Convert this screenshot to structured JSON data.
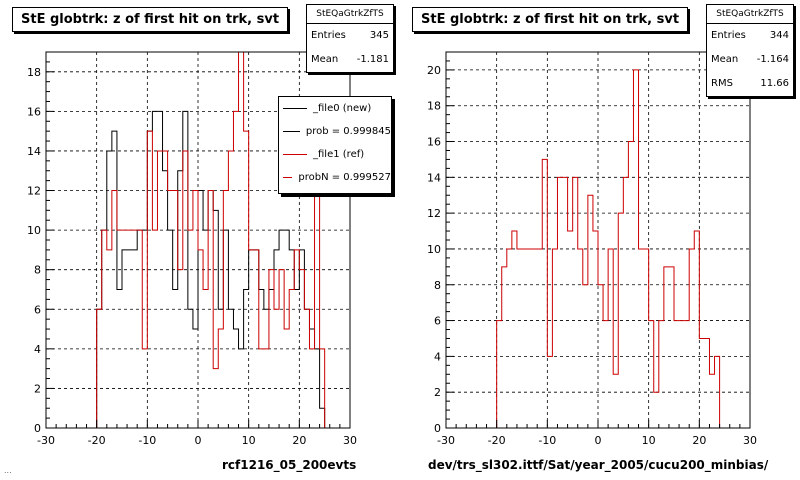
{
  "chart_data": [
    {
      "type": "step",
      "title": "StE globtrk: z of first hit on trk, svt",
      "xlabel": "rcf1216_05_200evts",
      "xlim": [
        -30,
        30
      ],
      "ylim": [
        0,
        19
      ],
      "xticks": [
        -30,
        -20,
        -10,
        0,
        10,
        20,
        30
      ],
      "yticks": [
        0,
        2,
        4,
        6,
        8,
        10,
        12,
        14,
        16,
        18
      ],
      "grid": true,
      "bin_edges_start": -30,
      "bin_width": 1,
      "stats": {
        "header": "StEQaGtrkZfTS",
        "entries_label": "Entries",
        "entries": "345",
        "mean_label": "Mean",
        "mean": "-1.181"
      },
      "legend": {
        "placement": "top-right",
        "entries": [
          {
            "label": "_file0 (new)",
            "color": "#000000"
          },
          {
            "label": "prob = 0.999845",
            "color": "#000000"
          },
          {
            "label": "_file1 (ref)",
            "color": "#cc0000"
          },
          {
            "label": "probN = 0.999527",
            "color": "#cc0000"
          }
        ]
      },
      "series": [
        {
          "name": "_file0 (new)",
          "color": "#000000",
          "values": [
            0,
            0,
            0,
            0,
            0,
            0,
            0,
            0,
            0,
            0,
            6,
            10,
            14,
            15,
            7,
            9,
            9,
            9,
            10,
            10,
            15,
            16,
            16,
            13,
            10,
            7,
            13,
            16,
            6,
            5,
            12,
            10,
            12,
            11,
            6,
            10,
            6,
            5,
            4,
            7,
            9,
            9,
            7,
            6,
            7,
            9,
            10,
            10,
            9,
            7,
            9,
            6,
            5,
            4,
            1,
            0,
            0,
            0,
            0,
            0
          ]
        },
        {
          "name": "_file1 (ref)",
          "color": "#cc0000",
          "values": [
            0,
            0,
            0,
            0,
            0,
            0,
            0,
            0,
            0,
            0,
            6,
            10,
            9,
            12,
            10,
            10,
            10,
            10,
            10,
            4,
            15,
            10,
            14,
            14,
            12,
            12,
            8,
            14,
            10,
            12,
            9,
            7,
            12,
            3,
            5,
            12,
            14,
            16,
            19,
            15,
            9,
            9,
            4,
            4,
            8,
            6,
            8,
            5,
            7,
            9,
            8,
            6,
            4,
            12,
            4,
            0,
            0,
            0,
            0,
            0
          ]
        }
      ]
    },
    {
      "type": "step",
      "title": "StE globtrk: z of first hit on trk, svt",
      "xlabel": "dev/trs_sl302.ittf/Sat/year_2005/cucu200_minbias/",
      "xlim": [
        -30,
        30
      ],
      "ylim": [
        0,
        21
      ],
      "xticks": [
        -30,
        -20,
        -10,
        0,
        10,
        20,
        30
      ],
      "yticks": [
        0,
        2,
        4,
        6,
        8,
        10,
        12,
        14,
        16,
        18,
        20
      ],
      "grid": true,
      "bin_edges_start": -30,
      "bin_width": 1,
      "stats": {
        "header": "StEQaGtrkZfTS",
        "entries_label": "Entries",
        "entries": "344",
        "mean_label": "Mean",
        "mean": "-1.164",
        "rms_label": "RMS",
        "rms": "11.66"
      },
      "series": [
        {
          "name": "",
          "color": "#cc0000",
          "values": [
            0,
            0,
            0,
            0,
            0,
            0,
            0,
            0,
            0,
            0,
            6,
            9,
            10,
            11,
            10,
            10,
            10,
            10,
            10,
            15,
            4,
            10,
            14,
            14,
            11,
            14,
            10,
            8,
            13,
            11,
            8,
            6,
            10,
            3,
            12,
            14,
            16,
            20,
            10,
            10,
            6,
            2,
            6,
            9,
            9,
            6,
            6,
            6,
            10,
            11,
            5,
            5,
            3,
            4,
            0,
            0,
            0,
            0,
            0,
            0
          ]
        }
      ]
    }
  ],
  "footer_text": "..."
}
